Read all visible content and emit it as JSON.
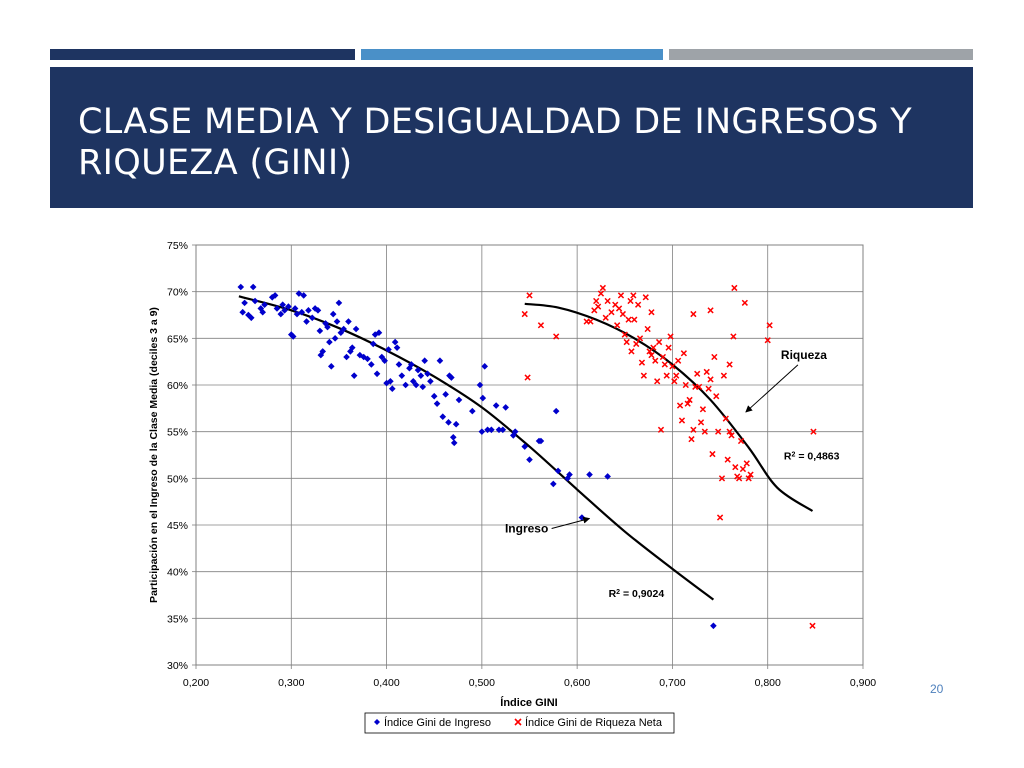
{
  "slide": {
    "title": "CLASE MEDIA Y DESIGUALDAD DE INGRESOS  Y RIQUEZA (GINI)",
    "page_number": "20",
    "stripe_colors": [
      "#1e3461",
      "#4a90c8",
      "#9ea3a8"
    ],
    "banner_color": "#1e3461"
  },
  "chart_data": {
    "type": "scatter",
    "xlabel": "Índice GINI",
    "ylabel": "Participación en el Ingreso de la Clase Media (deciles 3 a 9)",
    "xlim": [
      0.2,
      0.9
    ],
    "ylim": [
      0.3,
      0.75
    ],
    "x_ticks": [
      0.2,
      0.3,
      0.4,
      0.5,
      0.6,
      0.7,
      0.8,
      0.9
    ],
    "x_tick_labels": [
      "0,200",
      "0,300",
      "0,400",
      "0,500",
      "0,600",
      "0,700",
      "0,800",
      "0,900"
    ],
    "y_ticks": [
      0.3,
      0.35,
      0.4,
      0.45,
      0.5,
      0.55,
      0.6,
      0.65,
      0.7,
      0.75
    ],
    "y_tick_labels": [
      "30%",
      "35%",
      "40%",
      "45%",
      "50%",
      "55%",
      "60%",
      "65%",
      "70%",
      "75%"
    ],
    "grid": true,
    "legend_position": "bottom",
    "series": [
      {
        "name": "Índice Gini de Ingreso",
        "color": "#0000cc",
        "marker": "diamond",
        "points": [
          [
            0.247,
            0.705
          ],
          [
            0.249,
            0.678
          ],
          [
            0.251,
            0.688
          ],
          [
            0.255,
            0.675
          ],
          [
            0.258,
            0.672
          ],
          [
            0.26,
            0.705
          ],
          [
            0.262,
            0.69
          ],
          [
            0.268,
            0.682
          ],
          [
            0.27,
            0.678
          ],
          [
            0.272,
            0.686
          ],
          [
            0.28,
            0.694
          ],
          [
            0.283,
            0.696
          ],
          [
            0.285,
            0.682
          ],
          [
            0.289,
            0.676
          ],
          [
            0.291,
            0.686
          ],
          [
            0.293,
            0.68
          ],
          [
            0.297,
            0.684
          ],
          [
            0.3,
            0.654
          ],
          [
            0.302,
            0.652
          ],
          [
            0.304,
            0.682
          ],
          [
            0.306,
            0.676
          ],
          [
            0.308,
            0.698
          ],
          [
            0.311,
            0.678
          ],
          [
            0.313,
            0.696
          ],
          [
            0.316,
            0.668
          ],
          [
            0.318,
            0.68
          ],
          [
            0.322,
            0.672
          ],
          [
            0.325,
            0.682
          ],
          [
            0.328,
            0.68
          ],
          [
            0.33,
            0.658
          ],
          [
            0.331,
            0.632
          ],
          [
            0.333,
            0.636
          ],
          [
            0.336,
            0.666
          ],
          [
            0.338,
            0.662
          ],
          [
            0.34,
            0.646
          ],
          [
            0.342,
            0.62
          ],
          [
            0.344,
            0.676
          ],
          [
            0.346,
            0.65
          ],
          [
            0.348,
            0.668
          ],
          [
            0.35,
            0.688
          ],
          [
            0.352,
            0.656
          ],
          [
            0.355,
            0.66
          ],
          [
            0.358,
            0.63
          ],
          [
            0.36,
            0.668
          ],
          [
            0.362,
            0.636
          ],
          [
            0.364,
            0.64
          ],
          [
            0.366,
            0.61
          ],
          [
            0.368,
            0.66
          ],
          [
            0.372,
            0.632
          ],
          [
            0.376,
            0.63
          ],
          [
            0.38,
            0.628
          ],
          [
            0.384,
            0.622
          ],
          [
            0.386,
            0.644
          ],
          [
            0.388,
            0.654
          ],
          [
            0.39,
            0.612
          ],
          [
            0.392,
            0.656
          ],
          [
            0.395,
            0.63
          ],
          [
            0.398,
            0.626
          ],
          [
            0.4,
            0.602
          ],
          [
            0.402,
            0.638
          ],
          [
            0.404,
            0.604
          ],
          [
            0.406,
            0.596
          ],
          [
            0.409,
            0.646
          ],
          [
            0.411,
            0.64
          ],
          [
            0.413,
            0.622
          ],
          [
            0.416,
            0.61
          ],
          [
            0.42,
            0.6
          ],
          [
            0.424,
            0.618
          ],
          [
            0.426,
            0.622
          ],
          [
            0.428,
            0.604
          ],
          [
            0.431,
            0.6
          ],
          [
            0.433,
            0.616
          ],
          [
            0.436,
            0.61
          ],
          [
            0.438,
            0.598
          ],
          [
            0.44,
            0.626
          ],
          [
            0.443,
            0.612
          ],
          [
            0.446,
            0.604
          ],
          [
            0.45,
            0.588
          ],
          [
            0.453,
            0.58
          ],
          [
            0.456,
            0.626
          ],
          [
            0.459,
            0.566
          ],
          [
            0.462,
            0.59
          ],
          [
            0.465,
            0.56
          ],
          [
            0.466,
            0.61
          ],
          [
            0.468,
            0.608
          ],
          [
            0.47,
            0.544
          ],
          [
            0.471,
            0.538
          ],
          [
            0.473,
            0.558
          ],
          [
            0.476,
            0.584
          ],
          [
            0.49,
            0.572
          ],
          [
            0.498,
            0.6
          ],
          [
            0.5,
            0.55
          ],
          [
            0.501,
            0.586
          ],
          [
            0.503,
            0.62
          ],
          [
            0.506,
            0.552
          ],
          [
            0.51,
            0.552
          ],
          [
            0.515,
            0.578
          ],
          [
            0.518,
            0.552
          ],
          [
            0.522,
            0.552
          ],
          [
            0.525,
            0.576
          ],
          [
            0.533,
            0.546
          ],
          [
            0.535,
            0.55
          ],
          [
            0.545,
            0.534
          ],
          [
            0.55,
            0.52
          ],
          [
            0.56,
            0.54
          ],
          [
            0.562,
            0.54
          ],
          [
            0.575,
            0.494
          ],
          [
            0.578,
            0.572
          ],
          [
            0.58,
            0.508
          ],
          [
            0.59,
            0.5
          ],
          [
            0.592,
            0.504
          ],
          [
            0.605,
            0.458
          ],
          [
            0.613,
            0.504
          ],
          [
            0.632,
            0.502
          ],
          [
            0.743,
            0.342
          ]
        ]
      },
      {
        "name": "Índice Gini de Riqueza Neta",
        "color": "#ff0000",
        "marker": "x",
        "points": [
          [
            0.545,
            0.676
          ],
          [
            0.548,
            0.608
          ],
          [
            0.55,
            0.696
          ],
          [
            0.562,
            0.664
          ],
          [
            0.578,
            0.652
          ],
          [
            0.61,
            0.668
          ],
          [
            0.614,
            0.668
          ],
          [
            0.618,
            0.68
          ],
          [
            0.62,
            0.69
          ],
          [
            0.622,
            0.684
          ],
          [
            0.625,
            0.698
          ],
          [
            0.627,
            0.704
          ],
          [
            0.63,
            0.672
          ],
          [
            0.632,
            0.69
          ],
          [
            0.636,
            0.678
          ],
          [
            0.64,
            0.686
          ],
          [
            0.642,
            0.664
          ],
          [
            0.644,
            0.682
          ],
          [
            0.646,
            0.696
          ],
          [
            0.648,
            0.676
          ],
          [
            0.65,
            0.654
          ],
          [
            0.652,
            0.646
          ],
          [
            0.654,
            0.67
          ],
          [
            0.656,
            0.69
          ],
          [
            0.657,
            0.636
          ],
          [
            0.659,
            0.696
          ],
          [
            0.66,
            0.67
          ],
          [
            0.662,
            0.644
          ],
          [
            0.664,
            0.686
          ],
          [
            0.666,
            0.65
          ],
          [
            0.668,
            0.624
          ],
          [
            0.67,
            0.61
          ],
          [
            0.672,
            0.694
          ],
          [
            0.674,
            0.66
          ],
          [
            0.676,
            0.636
          ],
          [
            0.678,
            0.632
          ],
          [
            0.68,
            0.64
          ],
          [
            0.682,
            0.626
          ],
          [
            0.684,
            0.604
          ],
          [
            0.686,
            0.646
          ],
          [
            0.688,
            0.552
          ],
          [
            0.69,
            0.63
          ],
          [
            0.692,
            0.622
          ],
          [
            0.694,
            0.61
          ],
          [
            0.696,
            0.64
          ],
          [
            0.698,
            0.652
          ],
          [
            0.7,
            0.62
          ],
          [
            0.702,
            0.604
          ],
          [
            0.704,
            0.61
          ],
          [
            0.706,
            0.626
          ],
          [
            0.708,
            0.578
          ],
          [
            0.71,
            0.562
          ],
          [
            0.712,
            0.634
          ],
          [
            0.714,
            0.6
          ],
          [
            0.716,
            0.58
          ],
          [
            0.718,
            0.584
          ],
          [
            0.72,
            0.542
          ],
          [
            0.722,
            0.552
          ],
          [
            0.724,
            0.598
          ],
          [
            0.726,
            0.612
          ],
          [
            0.728,
            0.598
          ],
          [
            0.73,
            0.56
          ],
          [
            0.732,
            0.574
          ],
          [
            0.734,
            0.55
          ],
          [
            0.736,
            0.614
          ],
          [
            0.738,
            0.596
          ],
          [
            0.74,
            0.606
          ],
          [
            0.742,
            0.526
          ],
          [
            0.744,
            0.63
          ],
          [
            0.746,
            0.588
          ],
          [
            0.748,
            0.55
          ],
          [
            0.75,
            0.458
          ],
          [
            0.752,
            0.5
          ],
          [
            0.754,
            0.61
          ],
          [
            0.756,
            0.564
          ],
          [
            0.758,
            0.52
          ],
          [
            0.76,
            0.55
          ],
          [
            0.762,
            0.546
          ],
          [
            0.764,
            0.652
          ],
          [
            0.765,
            0.704
          ],
          [
            0.766,
            0.512
          ],
          [
            0.768,
            0.502
          ],
          [
            0.77,
            0.5
          ],
          [
            0.772,
            0.54
          ],
          [
            0.774,
            0.51
          ],
          [
            0.776,
            0.688
          ],
          [
            0.778,
            0.516
          ],
          [
            0.78,
            0.5
          ],
          [
            0.782,
            0.504
          ],
          [
            0.8,
            0.648
          ],
          [
            0.802,
            0.664
          ],
          [
            0.847,
            0.342
          ],
          [
            0.848,
            0.55
          ],
          [
            0.678,
            0.678
          ],
          [
            0.74,
            0.68
          ],
          [
            0.722,
            0.676
          ],
          [
            0.76,
            0.622
          ]
        ]
      }
    ],
    "trendlines": [
      {
        "series": "Índice Gini de Ingreso",
        "type": "polynomial",
        "points": [
          [
            0.245,
            0.695
          ],
          [
            0.3,
            0.68
          ],
          [
            0.35,
            0.661
          ],
          [
            0.4,
            0.637
          ],
          [
            0.45,
            0.609
          ],
          [
            0.5,
            0.576
          ],
          [
            0.55,
            0.534
          ],
          [
            0.6,
            0.488
          ],
          [
            0.65,
            0.443
          ],
          [
            0.7,
            0.403
          ],
          [
            0.743,
            0.37
          ]
        ],
        "r2_label": "R² = 0,9024",
        "r2_position": [
          0.633,
          0.373
        ]
      },
      {
        "series": "Índice Gini de Riqueza Neta",
        "type": "polynomial",
        "points": [
          [
            0.545,
            0.687
          ],
          [
            0.58,
            0.683
          ],
          [
            0.62,
            0.67
          ],
          [
            0.66,
            0.65
          ],
          [
            0.7,
            0.622
          ],
          [
            0.74,
            0.584
          ],
          [
            0.78,
            0.533
          ],
          [
            0.81,
            0.49
          ],
          [
            0.847,
            0.465
          ]
        ],
        "r2_label": "R² = 0,4863",
        "r2_position": [
          0.817,
          0.52
        ]
      }
    ],
    "annotations": [
      {
        "text": "Riqueza",
        "at": [
          0.838,
          0.628
        ],
        "arrow_to": [
          0.777,
          0.571
        ]
      },
      {
        "text": "Ingreso",
        "at": [
          0.547,
          0.442
        ],
        "arrow_to": [
          0.613,
          0.457
        ]
      }
    ]
  }
}
